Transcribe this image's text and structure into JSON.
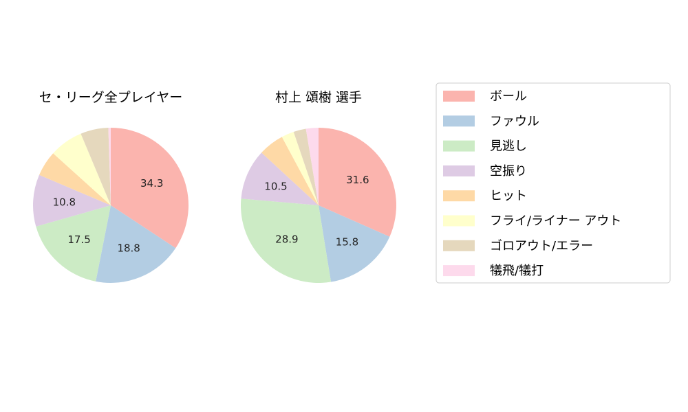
{
  "legend": {
    "placement": "right",
    "entries": [
      "ボール",
      "ファウル",
      "見逃し",
      "空振り",
      "ヒット",
      "フライ/ライナー アウト",
      "ゴロアウト/エラー",
      "犠飛/犠打"
    ]
  },
  "colors": [
    "#fbb4ae",
    "#b3cde3",
    "#ccebc5",
    "#decbe4",
    "#fed9a6",
    "#ffffcc",
    "#e5d8bd",
    "#fddaec"
  ],
  "chart_data": [
    {
      "type": "pie",
      "title": "セ・リーグ全プレイヤー",
      "categories": [
        "ボール",
        "ファウル",
        "見逃し",
        "空振り",
        "ヒット",
        "フライ/ライナー アウト",
        "ゴロアウト/エラー",
        "犠飛/犠打"
      ],
      "values": [
        34.3,
        18.8,
        17.5,
        10.8,
        5.3,
        7.0,
        5.8,
        0.5
      ],
      "data_labels": [
        "34.3",
        "18.8",
        "17.5",
        "10.8",
        "",
        "",
        "",
        ""
      ]
    },
    {
      "type": "pie",
      "title": "村上 頌樹  選手",
      "categories": [
        "ボール",
        "ファウル",
        "見逃し",
        "空振り",
        "ヒット",
        "フライ/ライナー アウト",
        "ゴロアウト/エラー",
        "犠飛/犠打"
      ],
      "values": [
        31.6,
        15.8,
        28.9,
        10.5,
        5.3,
        2.6,
        2.6,
        2.6
      ],
      "data_labels": [
        "31.6",
        "15.8",
        "28.9",
        "10.5",
        "",
        "",
        "",
        ""
      ]
    }
  ]
}
